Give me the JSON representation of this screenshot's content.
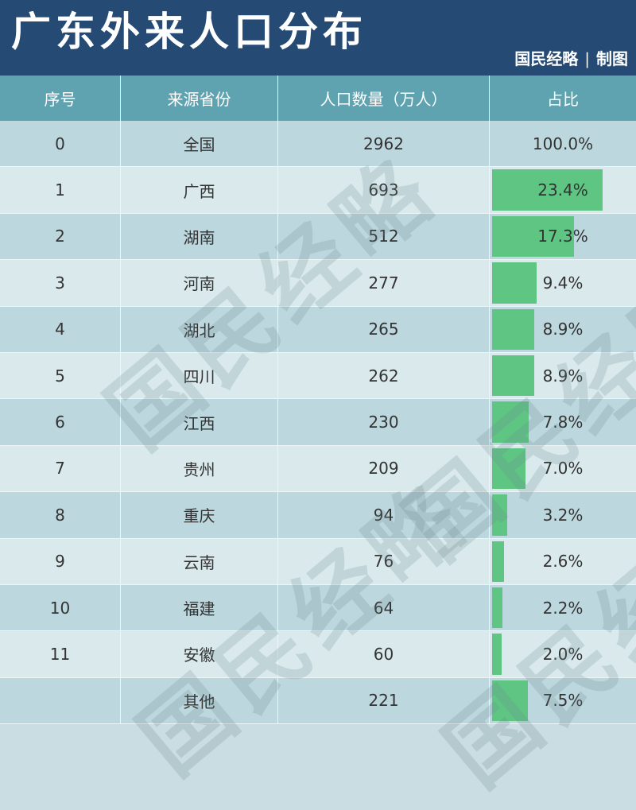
{
  "header": {
    "title": "广东外来人口分布",
    "credit_source": "国民经略",
    "credit_sep": "|",
    "credit_action": "制图"
  },
  "watermark": "国民经略",
  "colors": {
    "header_bg": "#254a73",
    "table_header_bg": "#5fa3b1",
    "bar": "#5ec583",
    "row_dark": "#bcd7dd",
    "row_light": "#d9e9ec"
  },
  "chart_data": {
    "type": "table",
    "columns": [
      "序号",
      "来源省份",
      "人口数量（万人）",
      "占比"
    ],
    "rows": [
      {
        "index": "0",
        "province": "全国",
        "population": "2962",
        "share": "100.0%",
        "share_value": 100.0
      },
      {
        "index": "1",
        "province": "广西",
        "population": "693",
        "share": "23.4%",
        "share_value": 23.4
      },
      {
        "index": "2",
        "province": "湖南",
        "population": "512",
        "share": "17.3%",
        "share_value": 17.3
      },
      {
        "index": "3",
        "province": "河南",
        "population": "277",
        "share": "9.4%",
        "share_value": 9.4
      },
      {
        "index": "4",
        "province": "湖北",
        "population": "265",
        "share": "8.9%",
        "share_value": 8.9
      },
      {
        "index": "5",
        "province": "四川",
        "population": "262",
        "share": "8.9%",
        "share_value": 8.9
      },
      {
        "index": "6",
        "province": "江西",
        "population": "230",
        "share": "7.8%",
        "share_value": 7.8
      },
      {
        "index": "7",
        "province": "贵州",
        "population": "209",
        "share": "7.0%",
        "share_value": 7.0
      },
      {
        "index": "8",
        "province": "重庆",
        "population": "94",
        "share": "3.2%",
        "share_value": 3.2
      },
      {
        "index": "9",
        "province": "云南",
        "population": "76",
        "share": "2.6%",
        "share_value": 2.6
      },
      {
        "index": "10",
        "province": "福建",
        "population": "64",
        "share": "2.2%",
        "share_value": 2.2
      },
      {
        "index": "11",
        "province": "安徽",
        "population": "60",
        "share": "2.0%",
        "share_value": 2.0
      },
      {
        "index": "",
        "province": "其他",
        "population": "221",
        "share": "7.5%",
        "share_value": 7.5
      }
    ],
    "bar_scale_max": 30
  }
}
